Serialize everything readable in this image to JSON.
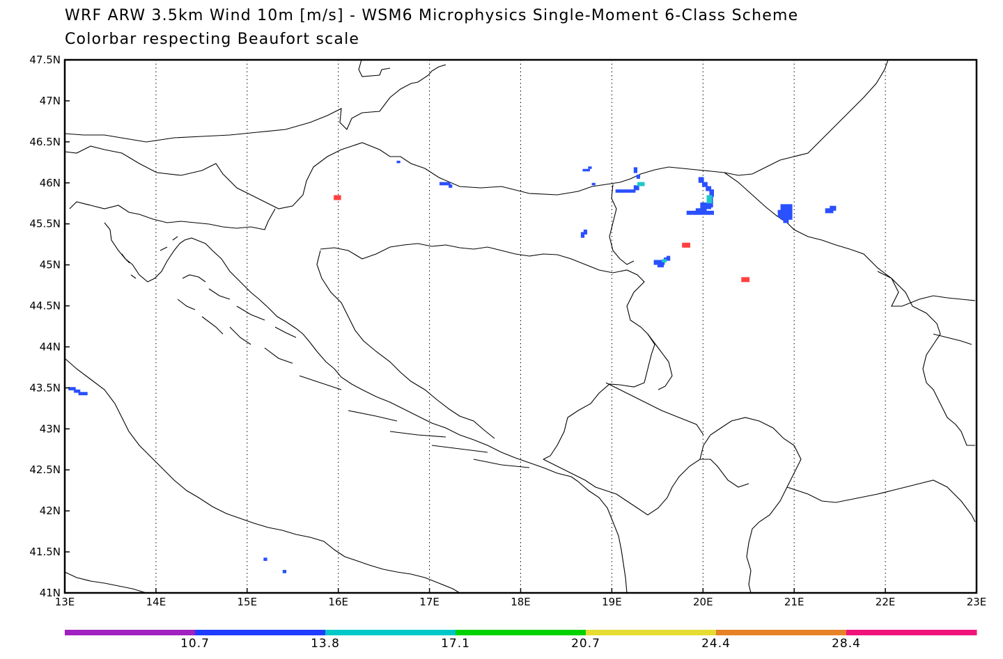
{
  "title": {
    "line1": "WRF ARW 3.5km   Wind 10m [m/s] - WSM6 Microphysics Single-Moment 6-Class Scheme",
    "line2": "Colorbar respecting Beaufort scale"
  },
  "map": {
    "lon_range": [
      13,
      23
    ],
    "lat_range": [
      41,
      47.5
    ],
    "grid": "dotted",
    "lon_ticks": [
      "13E",
      "14E",
      "15E",
      "16E",
      "17E",
      "18E",
      "19E",
      "20E",
      "21E",
      "22E",
      "23E"
    ],
    "lat_ticks": [
      "41N",
      "41.5N",
      "42N",
      "42.5N",
      "43N",
      "43.5N",
      "44N",
      "44.5N",
      "45N",
      "45.5N",
      "46N",
      "46.5N",
      "47N",
      "47.5N"
    ]
  },
  "colorbar": {
    "colors": [
      "#a020c0",
      "#1e3cff",
      "#00c8c8",
      "#00d200",
      "#e6dc32",
      "#e68228",
      "#f0147a"
    ],
    "labels": [
      "10.7",
      "13.8",
      "17.1",
      "20.7",
      "24.4",
      "28.4"
    ]
  },
  "wind_cells": {
    "blue": "#2a50ff",
    "cyan": "#1ec8c8",
    "red": "#ff4040"
  }
}
